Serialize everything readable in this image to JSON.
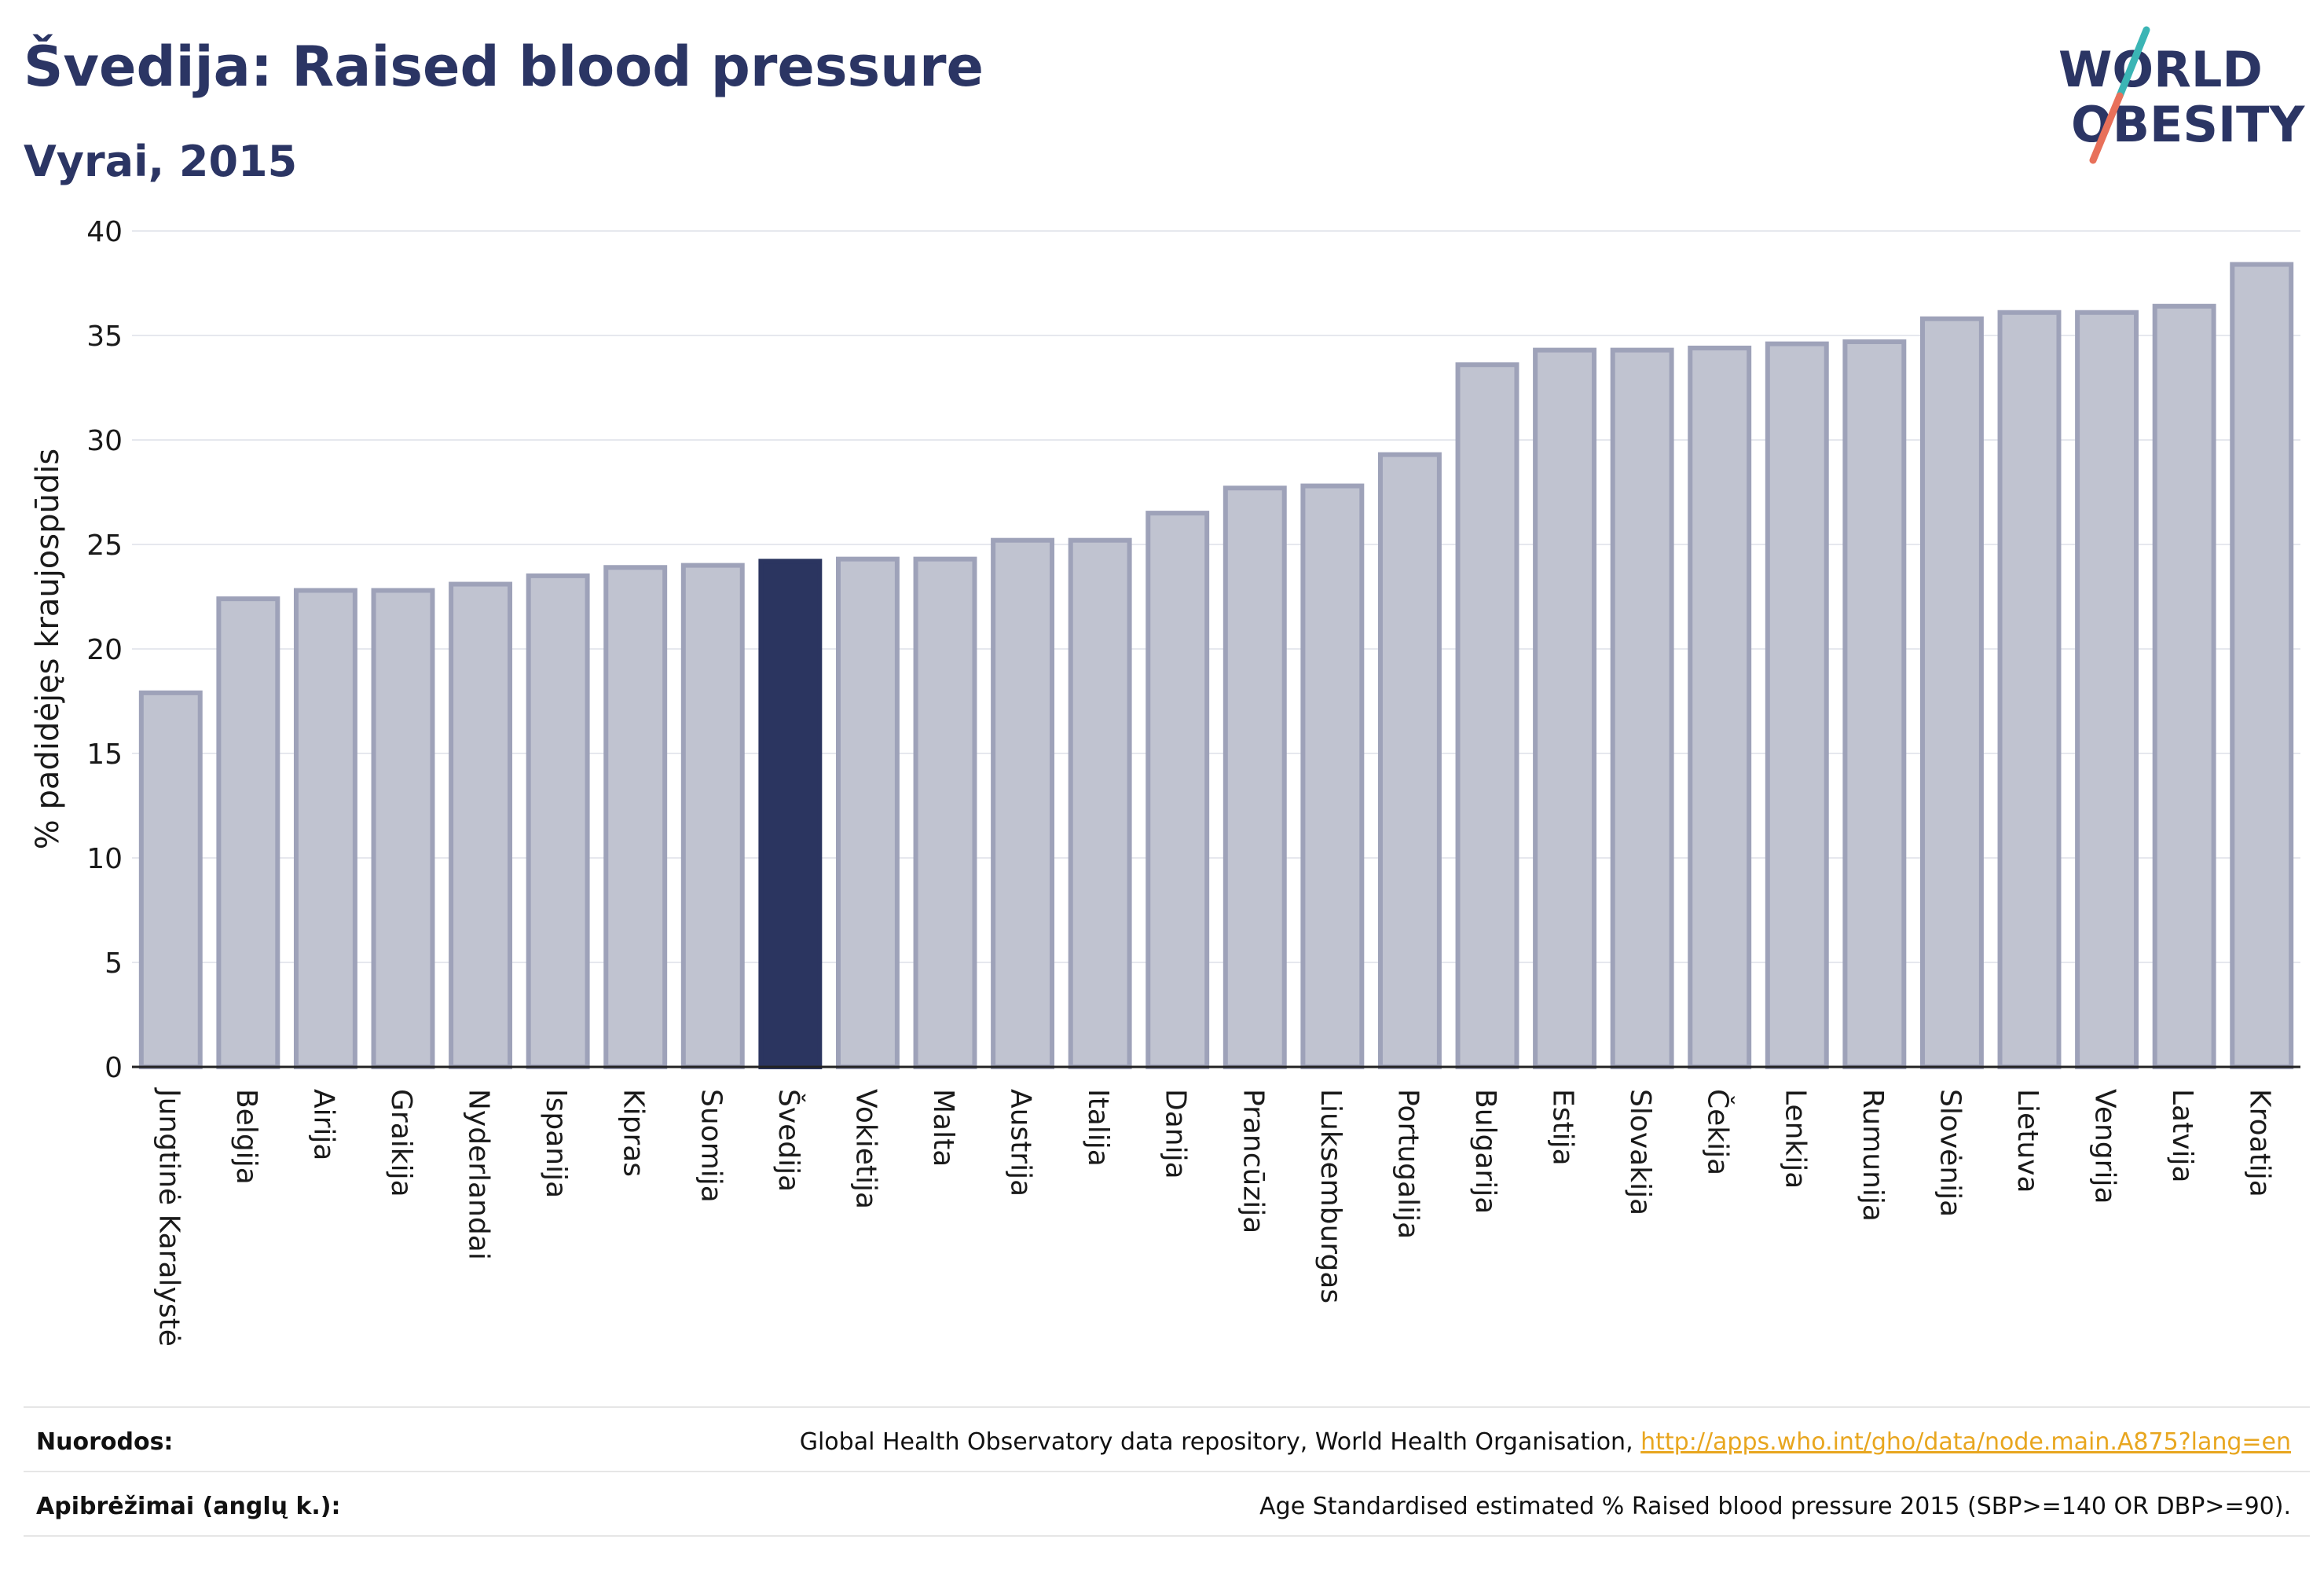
{
  "header": {
    "title": "Švedija: Raised blood pressure",
    "subtitle": "Vyrai, 2015"
  },
  "logo": {
    "line1": "WORLD",
    "line2": "OBESITY",
    "accent_teal": "#3bb5b5",
    "accent_coral": "#e8705a"
  },
  "colors": {
    "bar_fill": "#c0c3d0",
    "bar_stroke": "#9ea2b9",
    "highlight_fill": "#2b3560",
    "text": "#2b3564"
  },
  "chart_data": {
    "type": "bar",
    "ylabel": "% padidėjęs kraujospūdis",
    "ylim": [
      0,
      40
    ],
    "yticks": [
      0,
      5,
      10,
      15,
      20,
      25,
      30,
      35,
      40
    ],
    "grid": true,
    "highlight": "Švedija",
    "categories": [
      "Jungtinė Karalystė",
      "Belgija",
      "Airija",
      "Graikija",
      "Nyderlandai",
      "Ispanija",
      "Kipras",
      "Suomija",
      "Švedija",
      "Vokietija",
      "Malta",
      "Austrija",
      "Italija",
      "Danija",
      "Prancūzija",
      "Liuksemburgas",
      "Portugalija",
      "Bulgarija",
      "Estija",
      "Slovakija",
      "Čekija",
      "Lenkija",
      "Rumunija",
      "Slovėnija",
      "Lietuva",
      "Vengrija",
      "Latvija",
      "Kroatija"
    ],
    "values": [
      17.9,
      22.4,
      22.8,
      22.8,
      23.1,
      23.5,
      23.9,
      24.0,
      24.2,
      24.3,
      24.3,
      25.2,
      25.2,
      26.5,
      27.7,
      27.8,
      29.3,
      33.6,
      34.3,
      34.3,
      34.4,
      34.6,
      34.7,
      35.8,
      36.1,
      36.1,
      36.4,
      38.4
    ]
  },
  "footer": {
    "sources_label": "Nuorodos:",
    "sources_text": "Global Health Observatory data repository, World Health Organisation, ",
    "sources_link": "http://apps.who.int/gho/data/node.main.A875?lang=en",
    "definitions_label": "Apibrėžimai (anglų k.):",
    "definitions_text": "Age Standardised estimated % Raised blood pressure 2015 (SBP>=140 OR DBP>=90)."
  }
}
